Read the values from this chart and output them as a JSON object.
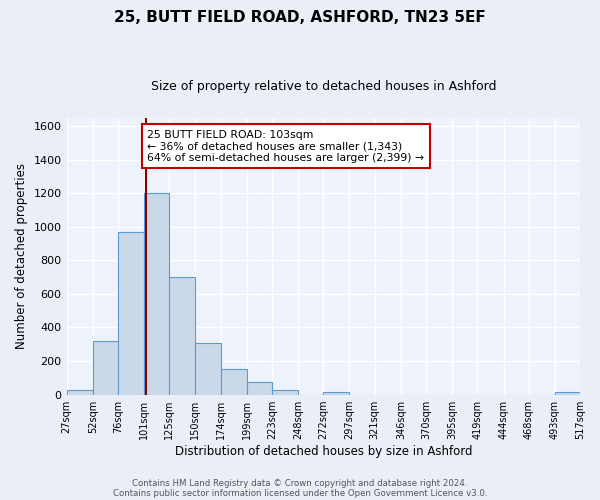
{
  "title": "25, BUTT FIELD ROAD, ASHFORD, TN23 5EF",
  "subtitle": "Size of property relative to detached houses in Ashford",
  "xlabel": "Distribution of detached houses by size in Ashford",
  "ylabel": "Number of detached properties",
  "bar_edges": [
    27,
    52,
    76,
    101,
    125,
    150,
    174,
    199,
    223,
    248,
    272,
    297,
    321,
    346,
    370,
    395,
    419,
    444,
    468,
    493,
    517
  ],
  "bar_heights": [
    25,
    320,
    970,
    1200,
    700,
    310,
    150,
    75,
    25,
    0,
    15,
    0,
    0,
    0,
    0,
    0,
    0,
    0,
    0,
    15
  ],
  "bar_color": "#c9d9e8",
  "bar_edge_color": "#5b9bd5",
  "property_value": 103,
  "vline_color": "#8b0000",
  "annotation_line1": "25 BUTT FIELD ROAD: 103sqm",
  "annotation_line2": "← 36% of detached houses are smaller (1,343)",
  "annotation_line3": "64% of semi-detached houses are larger (2,399) →",
  "annotation_box_color": "#ffffff",
  "annotation_box_edge": "#c00000",
  "ylim": [
    0,
    1650
  ],
  "yticks": [
    0,
    200,
    400,
    600,
    800,
    1000,
    1200,
    1400,
    1600
  ],
  "bg_color": "#eaeff7",
  "plot_bg_color": "#eef2fa",
  "grid_color": "#ffffff",
  "footer1": "Contains HM Land Registry data © Crown copyright and database right 2024.",
  "footer2": "Contains public sector information licensed under the Open Government Licence v3.0."
}
